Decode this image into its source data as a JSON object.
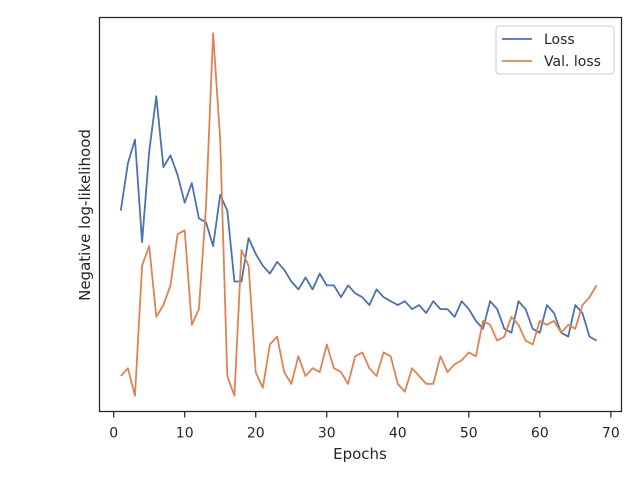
{
  "chart_data": {
    "type": "line",
    "title": "",
    "xlabel": "Epochs",
    "ylabel": "Negative log-likelihood",
    "xlim": [
      -2,
      71.5
    ],
    "ylim": [
      0,
      100
    ],
    "xticks": [
      0,
      10,
      20,
      30,
      40,
      50,
      60,
      70
    ],
    "yticks": [],
    "grid": false,
    "legend_position": "top-right",
    "series": [
      {
        "name": "Loss",
        "color": "#4c72b0",
        "x": [
          1,
          2,
          3,
          4,
          5,
          6,
          7,
          8,
          9,
          10,
          11,
          12,
          13,
          14,
          15,
          16,
          17,
          18,
          19,
          20,
          21,
          22,
          23,
          24,
          25,
          26,
          27,
          28,
          29,
          30,
          31,
          32,
          33,
          34,
          35,
          36,
          37,
          38,
          39,
          40,
          41,
          42,
          43,
          44,
          45,
          46,
          47,
          48,
          49,
          50,
          51,
          52,
          53,
          54,
          55,
          56,
          57,
          58,
          59,
          60,
          61,
          62,
          63,
          64,
          65,
          66,
          67,
          68
        ],
        "y": [
          51,
          63,
          69,
          43,
          66,
          80,
          62,
          65,
          60,
          53,
          58,
          49,
          48,
          42,
          55,
          51,
          33,
          33,
          44,
          40,
          37,
          35,
          38,
          36,
          33,
          31,
          34,
          31,
          35,
          32,
          32,
          29,
          32,
          30,
          29,
          27,
          31,
          29,
          28,
          27,
          28,
          26,
          27,
          25,
          28,
          26,
          26,
          24,
          28,
          26,
          23,
          21,
          28,
          26,
          21,
          20,
          28,
          26,
          21,
          20,
          27,
          25,
          20,
          19,
          27,
          25,
          19,
          18
        ]
      },
      {
        "name": "Val. loss",
        "color": "#dd8452",
        "x": [
          1,
          2,
          3,
          4,
          5,
          6,
          7,
          8,
          9,
          10,
          11,
          12,
          13,
          14,
          15,
          16,
          17,
          18,
          19,
          20,
          21,
          22,
          23,
          24,
          25,
          26,
          27,
          28,
          29,
          30,
          31,
          32,
          33,
          34,
          35,
          36,
          37,
          38,
          39,
          40,
          41,
          42,
          43,
          44,
          45,
          46,
          47,
          48,
          49,
          50,
          51,
          52,
          53,
          54,
          55,
          56,
          57,
          58,
          59,
          60,
          61,
          62,
          63,
          64,
          65,
          66,
          67,
          68
        ],
        "y": [
          9,
          11,
          4,
          37,
          42,
          24,
          27,
          32,
          45,
          46,
          22,
          26,
          52,
          96,
          69,
          9,
          4,
          41,
          37,
          10,
          6,
          17,
          19,
          10,
          7,
          14,
          9,
          11,
          10,
          17,
          11,
          10,
          7,
          14,
          15,
          11,
          9,
          15,
          14,
          7,
          5,
          11,
          9,
          7,
          7,
          14,
          10,
          12,
          13,
          15,
          14,
          23,
          22,
          18,
          19,
          24,
          22,
          18,
          17,
          23,
          22,
          23,
          20,
          22,
          21,
          27,
          29,
          32
        ]
      }
    ]
  }
}
